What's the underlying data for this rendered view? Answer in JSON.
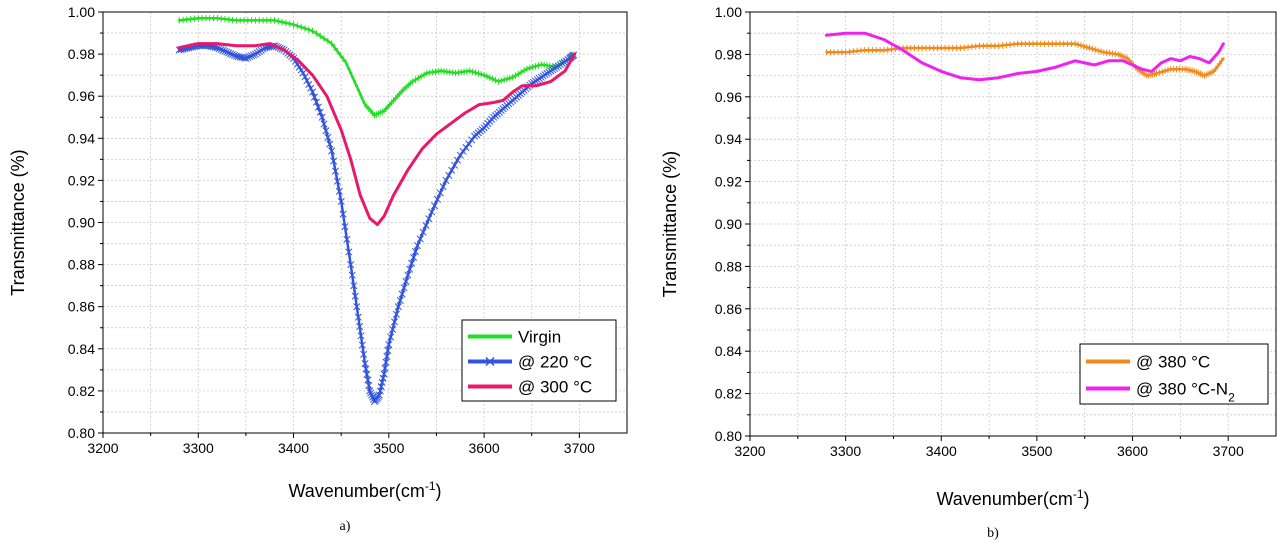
{
  "chart_data": [
    {
      "type": "line",
      "panel_label": "a)",
      "xlabel": "Wavenumber(cm",
      "xlabel_sup": "-1",
      "xlabel_end": ")",
      "ylabel": "Transmittance (%)",
      "xlim": [
        3200,
        3750
      ],
      "ylim": [
        0.8,
        1.0
      ],
      "x_ticks": [
        "3200",
        "3300",
        "3400",
        "3500",
        "3600",
        "3700"
      ],
      "y_ticks": [
        "0.80",
        "0.82",
        "0.84",
        "0.86",
        "0.88",
        "0.90",
        "0.92",
        "0.94",
        "0.96",
        "0.98",
        "1.00"
      ],
      "grid": true,
      "legend_position": "bottom-right",
      "series": [
        {
          "name": "Virgin",
          "color": "#22dd22",
          "marker": "plus",
          "points": [
            [
              3280,
              0.996
            ],
            [
              3300,
              0.997
            ],
            [
              3320,
              0.997
            ],
            [
              3340,
              0.996
            ],
            [
              3360,
              0.996
            ],
            [
              3380,
              0.996
            ],
            [
              3400,
              0.994
            ],
            [
              3420,
              0.991
            ],
            [
              3440,
              0.985
            ],
            [
              3455,
              0.976
            ],
            [
              3465,
              0.966
            ],
            [
              3475,
              0.956
            ],
            [
              3485,
              0.951
            ],
            [
              3495,
              0.953
            ],
            [
              3505,
              0.958
            ],
            [
              3515,
              0.963
            ],
            [
              3525,
              0.967
            ],
            [
              3540,
              0.971
            ],
            [
              3555,
              0.972
            ],
            [
              3570,
              0.971
            ],
            [
              3585,
              0.972
            ],
            [
              3600,
              0.97
            ],
            [
              3615,
              0.967
            ],
            [
              3630,
              0.969
            ],
            [
              3645,
              0.973
            ],
            [
              3660,
              0.975
            ],
            [
              3675,
              0.974
            ],
            [
              3690,
              0.978
            ],
            [
              3695,
              0.98
            ]
          ]
        },
        {
          "name": "@ 220 °C",
          "color": "#3355dd",
          "marker": "x",
          "points": [
            [
              3280,
              0.982
            ],
            [
              3290,
              0.983
            ],
            [
              3300,
              0.984
            ],
            [
              3310,
              0.984
            ],
            [
              3320,
              0.983
            ],
            [
              3330,
              0.981
            ],
            [
              3340,
              0.979
            ],
            [
              3350,
              0.978
            ],
            [
              3360,
              0.98
            ],
            [
              3370,
              0.983
            ],
            [
              3380,
              0.984
            ],
            [
              3390,
              0.982
            ],
            [
              3400,
              0.978
            ],
            [
              3410,
              0.971
            ],
            [
              3420,
              0.962
            ],
            [
              3430,
              0.95
            ],
            [
              3440,
              0.934
            ],
            [
              3450,
              0.91
            ],
            [
              3460,
              0.88
            ],
            [
              3468,
              0.855
            ],
            [
              3475,
              0.833
            ],
            [
              3480,
              0.82
            ],
            [
              3485,
              0.815
            ],
            [
              3490,
              0.818
            ],
            [
              3495,
              0.828
            ],
            [
              3500,
              0.842
            ],
            [
              3510,
              0.86
            ],
            [
              3520,
              0.875
            ],
            [
              3530,
              0.889
            ],
            [
              3545,
              0.905
            ],
            [
              3560,
              0.92
            ],
            [
              3575,
              0.932
            ],
            [
              3590,
              0.941
            ],
            [
              3600,
              0.945
            ],
            [
              3610,
              0.95
            ],
            [
              3620,
              0.954
            ],
            [
              3630,
              0.958
            ],
            [
              3640,
              0.962
            ],
            [
              3650,
              0.966
            ],
            [
              3660,
              0.969
            ],
            [
              3670,
              0.972
            ],
            [
              3680,
              0.975
            ],
            [
              3690,
              0.978
            ],
            [
              3695,
              0.98
            ]
          ]
        },
        {
          "name": "@ 300 °C",
          "color": "#e8186a",
          "marker": "none",
          "points": [
            [
              3280,
              0.983
            ],
            [
              3300,
              0.985
            ],
            [
              3320,
              0.985
            ],
            [
              3340,
              0.984
            ],
            [
              3360,
              0.984
            ],
            [
              3375,
              0.985
            ],
            [
              3390,
              0.982
            ],
            [
              3405,
              0.977
            ],
            [
              3420,
              0.97
            ],
            [
              3435,
              0.96
            ],
            [
              3450,
              0.944
            ],
            [
              3460,
              0.93
            ],
            [
              3470,
              0.913
            ],
            [
              3480,
              0.902
            ],
            [
              3488,
              0.899
            ],
            [
              3495,
              0.903
            ],
            [
              3505,
              0.913
            ],
            [
              3520,
              0.925
            ],
            [
              3535,
              0.935
            ],
            [
              3550,
              0.942
            ],
            [
              3565,
              0.947
            ],
            [
              3580,
              0.952
            ],
            [
              3595,
              0.956
            ],
            [
              3610,
              0.957
            ],
            [
              3620,
              0.958
            ],
            [
              3630,
              0.962
            ],
            [
              3640,
              0.965
            ],
            [
              3655,
              0.965
            ],
            [
              3670,
              0.967
            ],
            [
              3685,
              0.972
            ],
            [
              3695,
              0.98
            ]
          ]
        }
      ]
    },
    {
      "type": "line",
      "panel_label": "b)",
      "xlabel": "Wavenumber(cm",
      "xlabel_sup": "-1",
      "xlabel_end": ")",
      "ylabel": "Transmittance (%)",
      "xlim": [
        3200,
        3750
      ],
      "ylim": [
        0.8,
        1.0
      ],
      "x_ticks": [
        "3200",
        "3300",
        "3400",
        "3500",
        "3600",
        "3700"
      ],
      "y_ticks": [
        "0.80",
        "0.82",
        "0.84",
        "0.86",
        "0.88",
        "0.90",
        "0.92",
        "0.94",
        "0.96",
        "0.98",
        "1.00"
      ],
      "grid": true,
      "legend_position": "bottom-right",
      "series": [
        {
          "name": "@ 380 °C",
          "color": "#f08a1a",
          "marker": "plus",
          "points": [
            [
              3280,
              0.981
            ],
            [
              3300,
              0.981
            ],
            [
              3320,
              0.982
            ],
            [
              3340,
              0.982
            ],
            [
              3360,
              0.983
            ],
            [
              3380,
              0.983
            ],
            [
              3400,
              0.983
            ],
            [
              3420,
              0.983
            ],
            [
              3440,
              0.984
            ],
            [
              3460,
              0.984
            ],
            [
              3480,
              0.985
            ],
            [
              3500,
              0.985
            ],
            [
              3520,
              0.985
            ],
            [
              3540,
              0.985
            ],
            [
              3555,
              0.983
            ],
            [
              3570,
              0.981
            ],
            [
              3585,
              0.98
            ],
            [
              3595,
              0.978
            ],
            [
              3605,
              0.973
            ],
            [
              3615,
              0.97
            ],
            [
              3625,
              0.971
            ],
            [
              3640,
              0.973
            ],
            [
              3655,
              0.973
            ],
            [
              3665,
              0.972
            ],
            [
              3675,
              0.97
            ],
            [
              3685,
              0.972
            ],
            [
              3695,
              0.978
            ]
          ]
        },
        {
          "name": "@ 380 °C-N",
          "name_sub": "2",
          "color": "#ee22ee",
          "marker": "none",
          "points": [
            [
              3280,
              0.989
            ],
            [
              3300,
              0.99
            ],
            [
              3320,
              0.99
            ],
            [
              3340,
              0.987
            ],
            [
              3360,
              0.982
            ],
            [
              3380,
              0.976
            ],
            [
              3400,
              0.972
            ],
            [
              3420,
              0.969
            ],
            [
              3440,
              0.968
            ],
            [
              3460,
              0.969
            ],
            [
              3480,
              0.971
            ],
            [
              3500,
              0.972
            ],
            [
              3520,
              0.974
            ],
            [
              3540,
              0.977
            ],
            [
              3550,
              0.976
            ],
            [
              3560,
              0.975
            ],
            [
              3575,
              0.977
            ],
            [
              3590,
              0.977
            ],
            [
              3600,
              0.975
            ],
            [
              3610,
              0.973
            ],
            [
              3620,
              0.972
            ],
            [
              3630,
              0.976
            ],
            [
              3640,
              0.978
            ],
            [
              3650,
              0.977
            ],
            [
              3660,
              0.979
            ],
            [
              3670,
              0.978
            ],
            [
              3680,
              0.976
            ],
            [
              3690,
              0.981
            ],
            [
              3695,
              0.985
            ]
          ]
        }
      ]
    }
  ]
}
